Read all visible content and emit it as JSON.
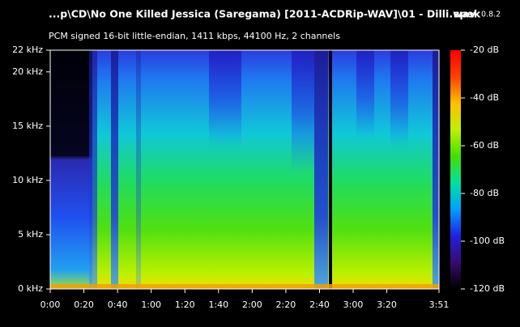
{
  "chart_data": {
    "type": "spectrogram",
    "title": "...p\\CD\\No One Killed Jessica (Saregama) [2011-ACDRip-WAV]\\01 - Dilli.wav",
    "app_name": "spek",
    "app_version": "0.8.2",
    "subtitle": "PCM signed 16-bit little-endian, 1411 kbps, 44100 Hz, 2 channels",
    "xlim": [
      0,
      231
    ],
    "xticks": [
      {
        "value": 0,
        "label": "0:00"
      },
      {
        "value": 20,
        "label": "0:20"
      },
      {
        "value": 40,
        "label": "0:40"
      },
      {
        "value": 60,
        "label": "1:00"
      },
      {
        "value": 80,
        "label": "1:20"
      },
      {
        "value": 100,
        "label": "1:40"
      },
      {
        "value": 120,
        "label": "2:00"
      },
      {
        "value": 140,
        "label": "2:20"
      },
      {
        "value": 160,
        "label": "2:40"
      },
      {
        "value": 180,
        "label": "3:00"
      },
      {
        "value": 200,
        "label": "3:20"
      },
      {
        "value": 231,
        "label": "3:51"
      }
    ],
    "ylim": [
      0,
      22
    ],
    "yticks": [
      {
        "value": 0,
        "label": "0 kHz"
      },
      {
        "value": 5,
        "label": "5 kHz"
      },
      {
        "value": 10,
        "label": "10 kHz"
      },
      {
        "value": 15,
        "label": "15 kHz"
      },
      {
        "value": 20,
        "label": "20 kHz"
      },
      {
        "value": 22,
        "label": "22 kHz"
      }
    ],
    "clim": [
      -120,
      -20
    ],
    "cticks": [
      {
        "value": -20,
        "label": "-20 dB"
      },
      {
        "value": -40,
        "label": "-40 dB"
      },
      {
        "value": -60,
        "label": "-60 dB"
      },
      {
        "value": -80,
        "label": "-80 dB"
      },
      {
        "value": -100,
        "label": "-100 dB"
      },
      {
        "value": -120,
        "label": "-120 dB"
      }
    ],
    "colormap": [
      "#000000",
      "#3a0a6e",
      "#2020e0",
      "#00a0ff",
      "#00e0a0",
      "#40e000",
      "#c0f000",
      "#ffc000",
      "#ff4000",
      "#ff0000"
    ]
  }
}
